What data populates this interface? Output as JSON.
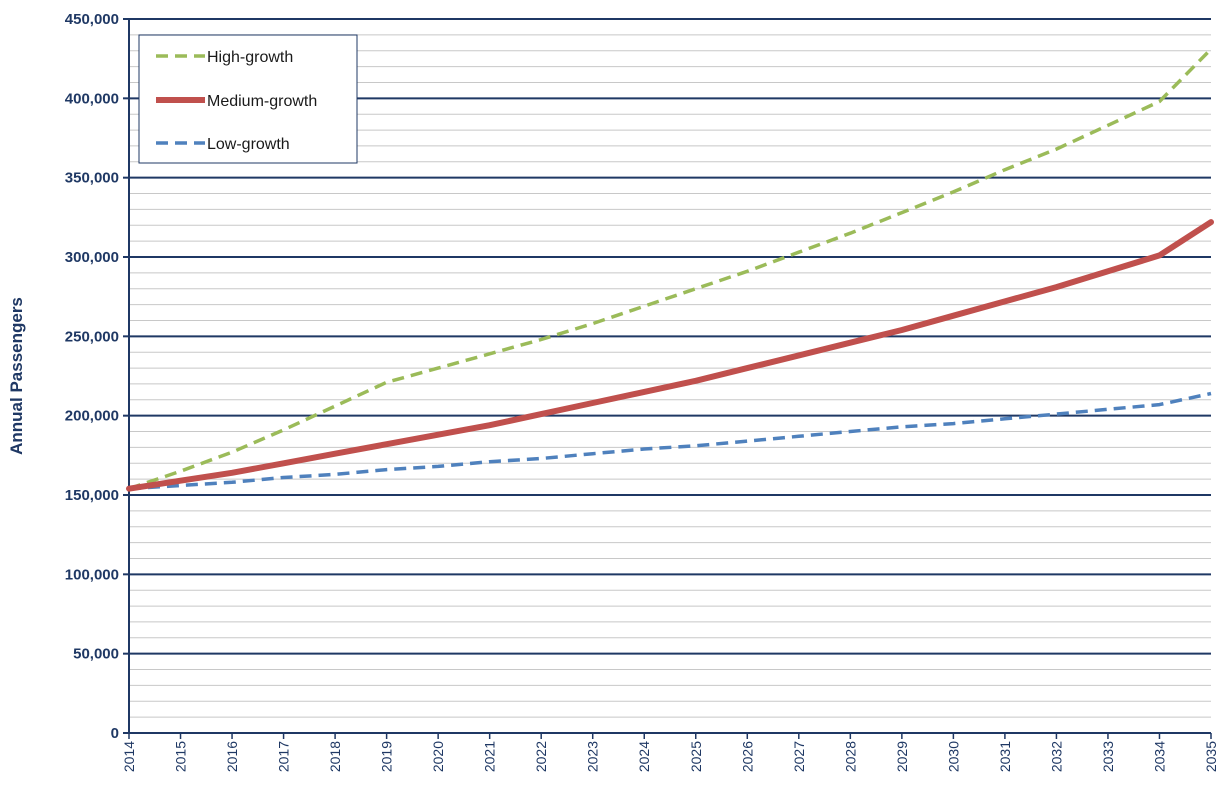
{
  "chart_data": {
    "type": "line",
    "title": "",
    "xlabel": "",
    "ylabel": "Annual Passengers",
    "ylim": [
      0,
      450000
    ],
    "xlim": [
      2014,
      2035
    ],
    "y_major_step": 50000,
    "y_minor_step": 10000,
    "x": [
      2014,
      2015,
      2016,
      2017,
      2018,
      2019,
      2020,
      2021,
      2022,
      2023,
      2024,
      2025,
      2026,
      2027,
      2028,
      2029,
      2030,
      2031,
      2032,
      2033,
      2034,
      2035
    ],
    "x_tick_labels": [
      "2014",
      "2015",
      "2016",
      "2017",
      "2018",
      "2019",
      "2020",
      "2021",
      "2022",
      "2023",
      "2024",
      "2025",
      "2026",
      "2027",
      "2028",
      "2029",
      "2030",
      "2031",
      "2032",
      "2033",
      "2034",
      "2035"
    ],
    "y_tick_labels": [
      "0",
      "50,000",
      "100,000",
      "150,000",
      "200,000",
      "250,000",
      "300,000",
      "350,000",
      "400,000",
      "450,000"
    ],
    "legend_position": "top-left",
    "grid": true,
    "series": [
      {
        "name": "High-growth",
        "color": "#9bbb59",
        "style": "dashed",
        "values": [
          154000,
          165000,
          177000,
          191000,
          206000,
          221000,
          230000,
          239000,
          248000,
          258000,
          269000,
          280000,
          291000,
          303000,
          315000,
          328000,
          341000,
          355000,
          368000,
          383000,
          398000,
          431000
        ]
      },
      {
        "name": "Medium-growth",
        "color": "#c0504d",
        "style": "solid",
        "values": [
          154000,
          159000,
          164000,
          170000,
          176000,
          182000,
          188000,
          194000,
          201000,
          208000,
          215000,
          222000,
          230000,
          238000,
          246000,
          254000,
          263000,
          272000,
          281000,
          291000,
          301000,
          322000
        ]
      },
      {
        "name": "Low-growth",
        "color": "#4f81bd",
        "style": "dashed",
        "values": [
          154000,
          156000,
          158000,
          161000,
          163000,
          166000,
          168000,
          171000,
          173000,
          176000,
          179000,
          181000,
          184000,
          187000,
          190000,
          193000,
          195000,
          198000,
          201000,
          204000,
          207000,
          214000
        ]
      }
    ]
  }
}
